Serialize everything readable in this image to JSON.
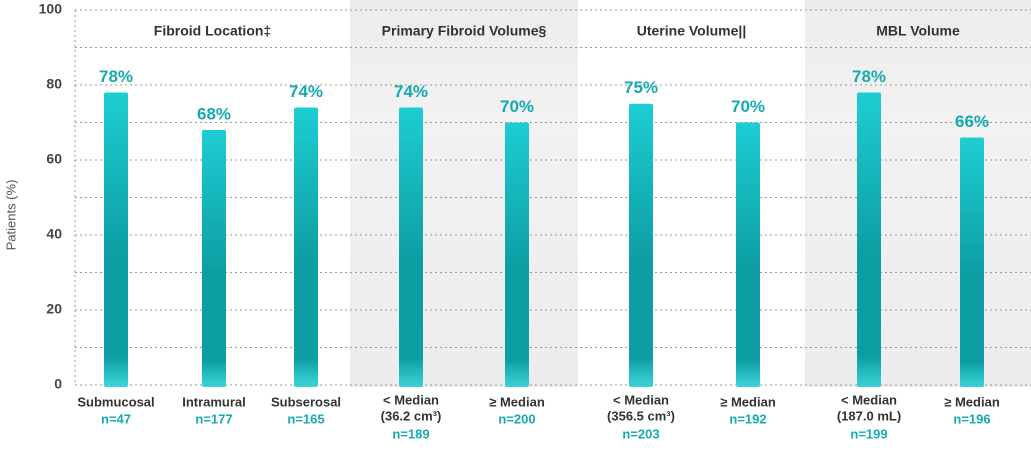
{
  "chart_data": {
    "type": "bar",
    "y_label": "Patients (%)",
    "ylim": [
      0,
      100
    ],
    "yticks": [
      0,
      20,
      40,
      60,
      80,
      100
    ],
    "minor_yticks": [
      10,
      30,
      50,
      70,
      90
    ],
    "grid": true,
    "color": "#1dcdd2",
    "color_dark": "#0d9ea3",
    "shade_color": "#ececec",
    "groups": [
      {
        "name": "Fibroid Location‡",
        "shaded": false,
        "categories": [
          [
            "Submucosal"
          ],
          [
            "Intramural"
          ],
          [
            "Subserosal"
          ]
        ],
        "n": [
          "n=47",
          "n=177",
          "n=165"
        ],
        "values": [
          78,
          68,
          74
        ],
        "value_labels": [
          "78%",
          "68%",
          "74%"
        ]
      },
      {
        "name": "Primary Fibroid Volume§",
        "shaded": true,
        "categories": [
          [
            "< Median",
            "(36.2 cm³)"
          ],
          [
            "≥ Median"
          ]
        ],
        "n": [
          "n=189",
          "n=200"
        ],
        "values": [
          74,
          70
        ],
        "value_labels": [
          "74%",
          "70%"
        ]
      },
      {
        "name": "Uterine Volume||",
        "shaded": false,
        "categories": [
          [
            "< Median",
            "(356.5 cm³)"
          ],
          [
            "≥ Median"
          ]
        ],
        "n": [
          "n=203",
          "n=192"
        ],
        "values": [
          75,
          70
        ],
        "value_labels": [
          "75%",
          "70%"
        ]
      },
      {
        "name": "MBL Volume",
        "shaded": true,
        "categories": [
          [
            "< Median",
            "(187.0 mL)"
          ],
          [
            "≥ Median"
          ]
        ],
        "n": [
          "n=199",
          "n=196"
        ],
        "values": [
          78,
          66
        ],
        "value_labels": [
          "78%",
          "66%"
        ]
      }
    ]
  }
}
